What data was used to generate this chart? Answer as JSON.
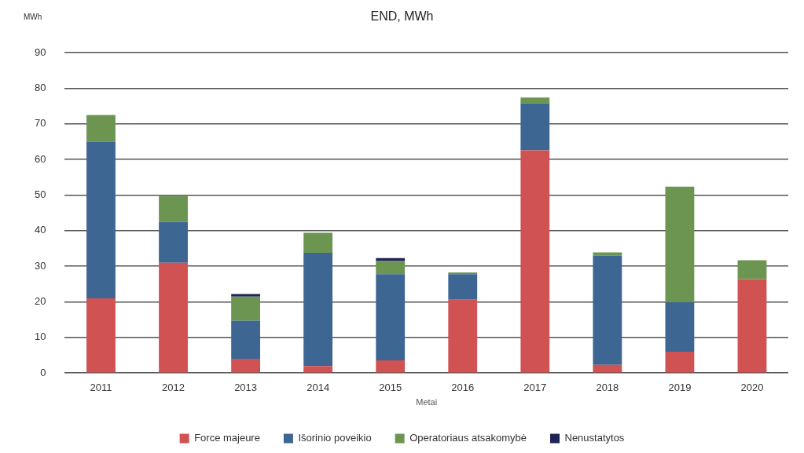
{
  "chart_data": {
    "type": "bar",
    "title": "END, MWh",
    "xlabel": "Metai",
    "ylabel": "MWh",
    "stacked": true,
    "categories": [
      "2011",
      "2012",
      "2013",
      "2014",
      "2015",
      "2016",
      "2017",
      "2018",
      "2019",
      "2020"
    ],
    "series": [
      {
        "name": "Force majeure",
        "color": "#d05252",
        "values": [
          21,
          31,
          4,
          2,
          3.6,
          20.6,
          62.6,
          2.3,
          6,
          26.4
        ]
      },
      {
        "name": "Išorinio poveikio",
        "color": "#3d6693",
        "values": [
          44,
          11.5,
          10.7,
          31.8,
          24.2,
          7.2,
          13.2,
          30.7,
          13.9,
          0
        ]
      },
      {
        "name": "Operatoriaus atsakomybė",
        "color": "#6b9550",
        "values": [
          7.5,
          7.3,
          6.8,
          5.6,
          3.7,
          0.5,
          1.6,
          0.9,
          32.5,
          5.3
        ]
      },
      {
        "name": "Nenustatytos",
        "color": "#1f2456",
        "values": [
          0,
          0,
          0.7,
          0,
          0.8,
          0,
          0,
          0,
          0,
          0
        ]
      }
    ],
    "ylim": [
      0,
      90
    ],
    "yticks": [
      0,
      10,
      20,
      30,
      40,
      50,
      60,
      70,
      80,
      90
    ],
    "grid": "y",
    "legend": "bottom"
  }
}
